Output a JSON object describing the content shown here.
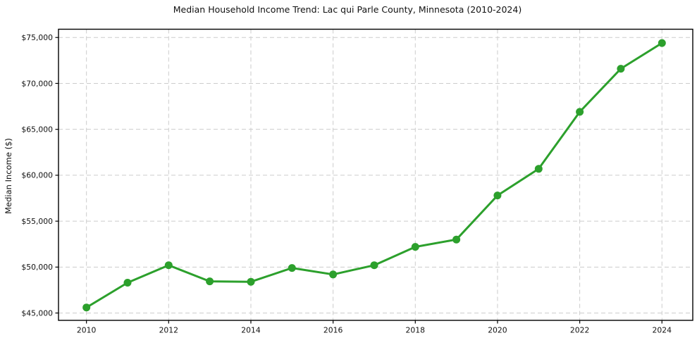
{
  "figure": {
    "background": "#ffffff"
  },
  "chart_data": {
    "type": "line",
    "title": "Median Household Income Trend: Lac qui Parle County, Minnesota (2010-2024)",
    "xlabel": "",
    "ylabel": "Median Income ($)",
    "series": [
      {
        "name": "Median Household Income",
        "x": [
          2010,
          2011,
          2012,
          2013,
          2014,
          2015,
          2016,
          2017,
          2018,
          2019,
          2020,
          2021,
          2022,
          2023,
          2024
        ],
        "values": [
          45600,
          48300,
          50200,
          48450,
          48400,
          49900,
          49200,
          50200,
          52200,
          53000,
          57800,
          60700,
          66900,
          71600,
          74400
        ],
        "line_color": "#2ca02c",
        "marker": "circle",
        "marker_color": "#2ca02c"
      }
    ],
    "xticks": {
      "values": [
        2010,
        2012,
        2014,
        2016,
        2018,
        2020,
        2022,
        2024
      ],
      "labels": [
        "2010",
        "2012",
        "2014",
        "2016",
        "2018",
        "2020",
        "2022",
        "2024"
      ]
    },
    "yticks": {
      "values": [
        45000,
        50000,
        55000,
        60000,
        65000,
        70000,
        75000
      ],
      "labels": [
        "$45,000",
        "$50,000",
        "$55,000",
        "$60,000",
        "$65,000",
        "$70,000",
        "$75,000"
      ]
    },
    "xlim": [
      2009.32,
      2024.75
    ],
    "ylim": [
      44200,
      75900
    ],
    "grid": {
      "show": true,
      "style": "dashed",
      "color": "#cccccc"
    },
    "axes": {
      "frame_color": "#000000",
      "tick_color": "#000000",
      "text_color": "#111111"
    },
    "legend": "none"
  }
}
